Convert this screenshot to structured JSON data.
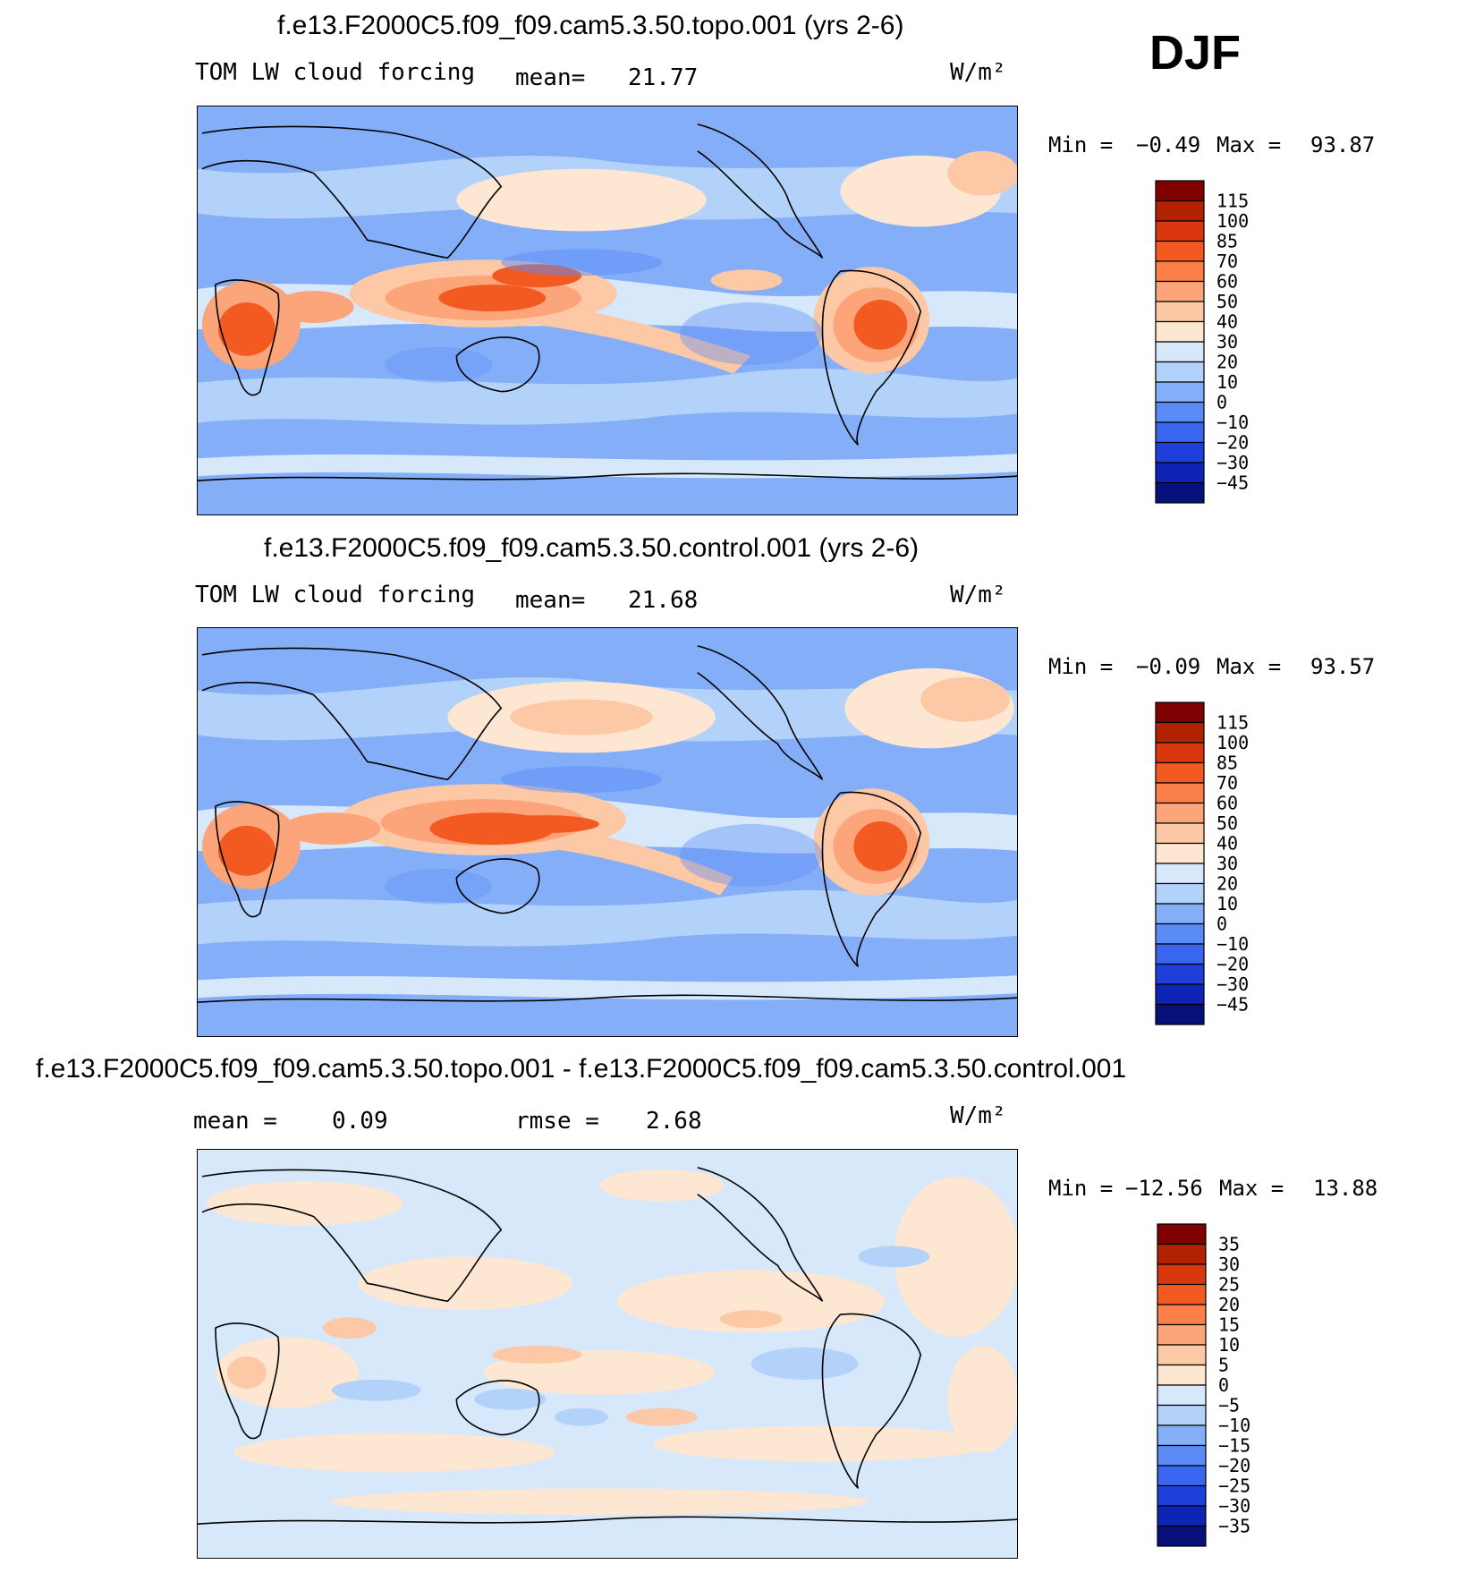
{
  "season": "DJF",
  "units": "W/m²",
  "panels": [
    {
      "id": "topo",
      "title": "f.e13.F2000C5.f09_f09.cam5.3.50.topo.001 (yrs 2-6)",
      "variable": "TOM LW cloud forcing",
      "stat1_label": "mean=",
      "stat1_value": "21.77",
      "stat2_label": "",
      "stat2_value": "",
      "min_label": "Min =",
      "min_value": "−0.49",
      "max_label": "Max =",
      "max_value": "93.87",
      "colorbar": {
        "levels": [
          "115",
          "100",
          "85",
          "70",
          "60",
          "50",
          "40",
          "30",
          "20",
          "10",
          "0",
          "−10",
          "−20",
          "−30",
          "−45"
        ],
        "colors": [
          "#7f0000",
          "#b22200",
          "#d9380e",
          "#f25a22",
          "#fb7f48",
          "#fca47a",
          "#fdc8a5",
          "#fde6d2",
          "#d6e8fa",
          "#b2d2fa",
          "#85aef8",
          "#5b8cf5",
          "#3a66ef",
          "#1f3fdb",
          "#0e24b4",
          "#06107a"
        ]
      }
    },
    {
      "id": "control",
      "title": "f.e13.F2000C5.f09_f09.cam5.3.50.control.001 (yrs 2-6)",
      "variable": "TOM LW cloud forcing",
      "stat1_label": "mean=",
      "stat1_value": "21.68",
      "stat2_label": "",
      "stat2_value": "",
      "min_label": "Min =",
      "min_value": "−0.09",
      "max_label": "Max =",
      "max_value": "93.57",
      "colorbar": {
        "levels": [
          "115",
          "100",
          "85",
          "70",
          "60",
          "50",
          "40",
          "30",
          "20",
          "10",
          "0",
          "−10",
          "−20",
          "−30",
          "−45"
        ],
        "colors": [
          "#7f0000",
          "#b22200",
          "#d9380e",
          "#f25a22",
          "#fb7f48",
          "#fca47a",
          "#fdc8a5",
          "#fde6d2",
          "#d6e8fa",
          "#b2d2fa",
          "#85aef8",
          "#5b8cf5",
          "#3a66ef",
          "#1f3fdb",
          "#0e24b4",
          "#06107a"
        ]
      }
    },
    {
      "id": "diff",
      "title": "f.e13.F2000C5.f09_f09.cam5.3.50.topo.001 - f.e13.F2000C5.f09_f09.cam5.3.50.control.001",
      "variable": "",
      "stat1_label": "mean =",
      "stat1_value": "0.09",
      "stat2_label": "rmse =",
      "stat2_value": "2.68",
      "min_label": "Min =",
      "min_value": "−12.56",
      "max_label": "Max =",
      "max_value": "13.88",
      "colorbar": {
        "levels": [
          "35",
          "30",
          "25",
          "20",
          "15",
          "10",
          "5",
          "0",
          "−5",
          "−10",
          "−15",
          "−20",
          "−25",
          "−30",
          "−35"
        ],
        "colors": [
          "#7f0000",
          "#b22200",
          "#d9380e",
          "#f25a22",
          "#fb7f48",
          "#fca47a",
          "#fdc8a5",
          "#fde6d2",
          "#d6e8fa",
          "#b2d2fa",
          "#85aef8",
          "#5b8cf5",
          "#3a66ef",
          "#1f3fdb",
          "#0e24b4",
          "#06107a"
        ]
      }
    }
  ]
}
